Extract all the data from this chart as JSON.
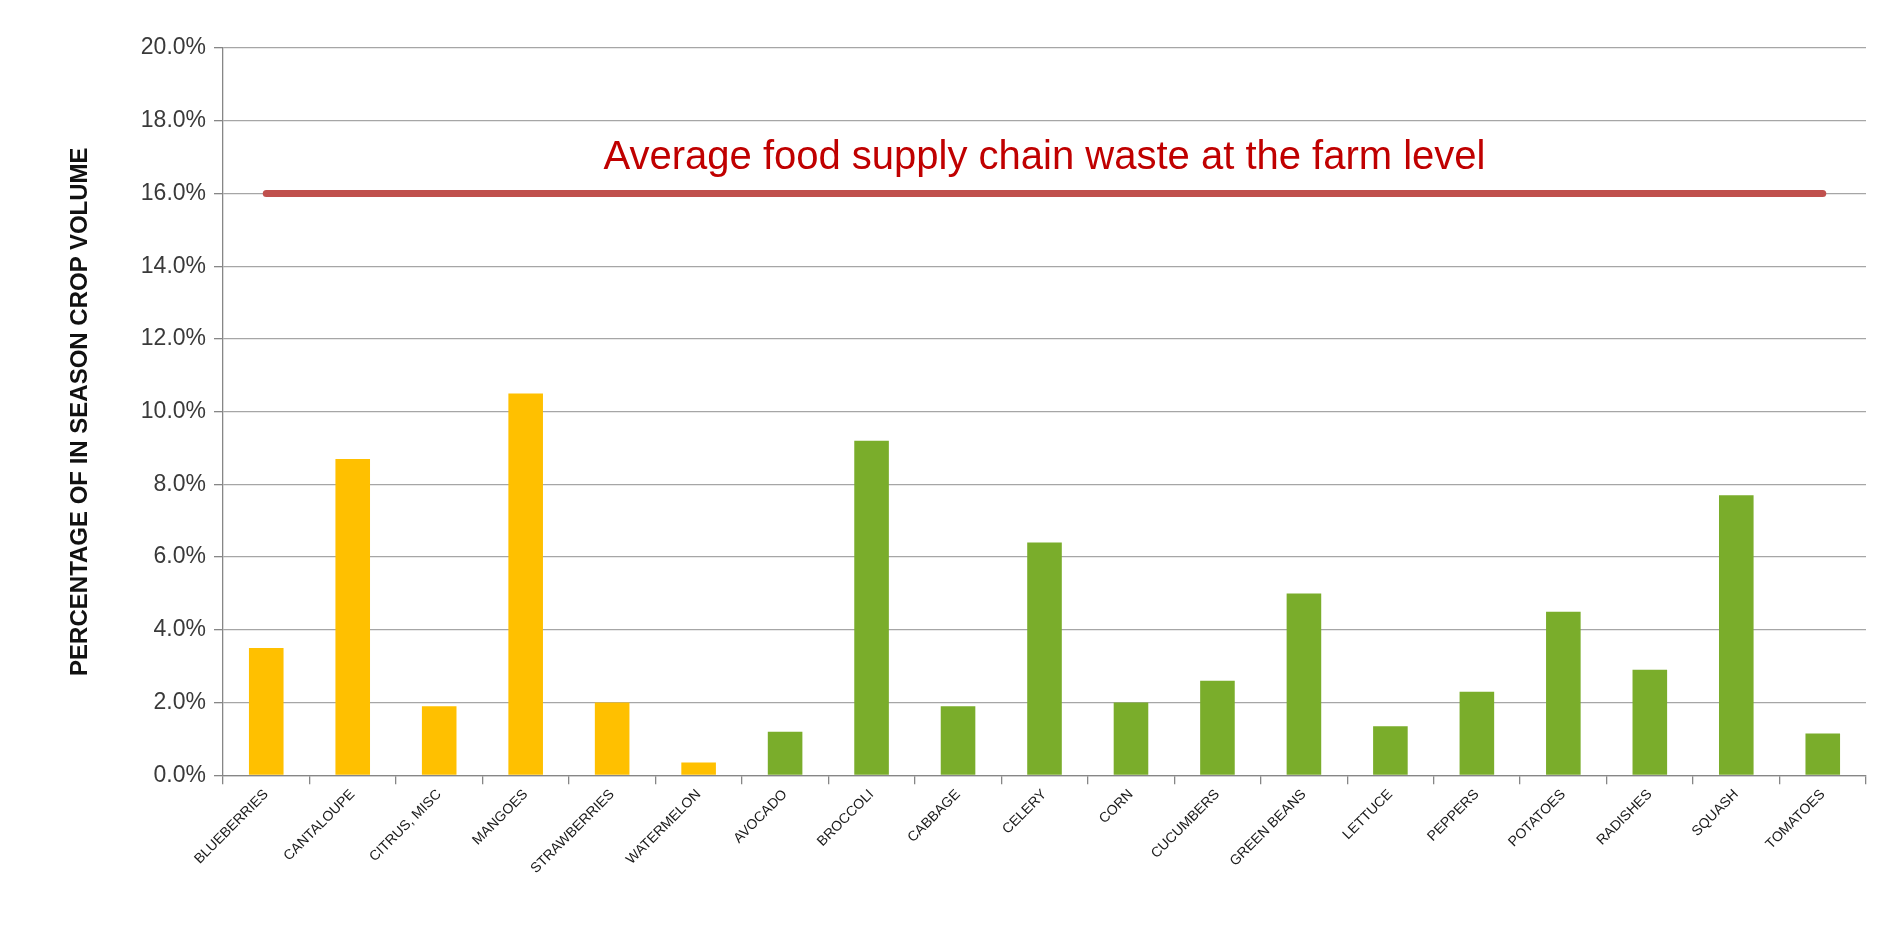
{
  "chart_data": {
    "type": "bar",
    "ylabel": "PERCENTAGE OF IN SEASON CROP VOLUME",
    "categories": [
      "BLUEBERRIES",
      "CANTALOUPE",
      "CITRUS, MISC",
      "MANGOES",
      "STRAWBERRIES",
      "WATERMELON",
      "AVOCADO",
      "BROCCOLI",
      "CABBAGE",
      "CELERY",
      "CORN",
      "CUCUMBERS",
      "GREEN BEANS",
      "LETTUCE",
      "PEPPERS",
      "POTATOES",
      "RADISHES",
      "SQUASH",
      "TOMATOES"
    ],
    "values": [
      3.5,
      8.7,
      1.9,
      10.5,
      2.0,
      0.35,
      1.2,
      9.2,
      1.9,
      6.4,
      2.0,
      2.6,
      5.0,
      1.35,
      2.3,
      4.5,
      2.9,
      7.7,
      1.15
    ],
    "colors": [
      "#ffc000",
      "#ffc000",
      "#ffc000",
      "#ffc000",
      "#ffc000",
      "#ffc000",
      "#7aad2b",
      "#7aad2b",
      "#7aad2b",
      "#7aad2b",
      "#7aad2b",
      "#7aad2b",
      "#7aad2b",
      "#7aad2b",
      "#7aad2b",
      "#7aad2b",
      "#7aad2b",
      "#7aad2b",
      "#7aad2b"
    ],
    "ylim": [
      0,
      20
    ],
    "yticks": [
      {
        "value": 0,
        "label": "0.0%"
      },
      {
        "value": 2,
        "label": "2.0%"
      },
      {
        "value": 4,
        "label": "4.0%"
      },
      {
        "value": 6,
        "label": "6.0%"
      },
      {
        "value": 8,
        "label": "8.0%"
      },
      {
        "value": 10,
        "label": "10.0%"
      },
      {
        "value": 12,
        "label": "12.0%"
      },
      {
        "value": 14,
        "label": "14.0%"
      },
      {
        "value": 16,
        "label": "16.0%"
      },
      {
        "value": 18,
        "label": "18.0%"
      },
      {
        "value": 20,
        "label": "20.0%"
      }
    ],
    "grid": "y",
    "ref_lines": [
      {
        "axis": "y",
        "value": 16,
        "label": "Average food supply chain waste at the farm level",
        "color": "#c0504d"
      }
    ]
  }
}
